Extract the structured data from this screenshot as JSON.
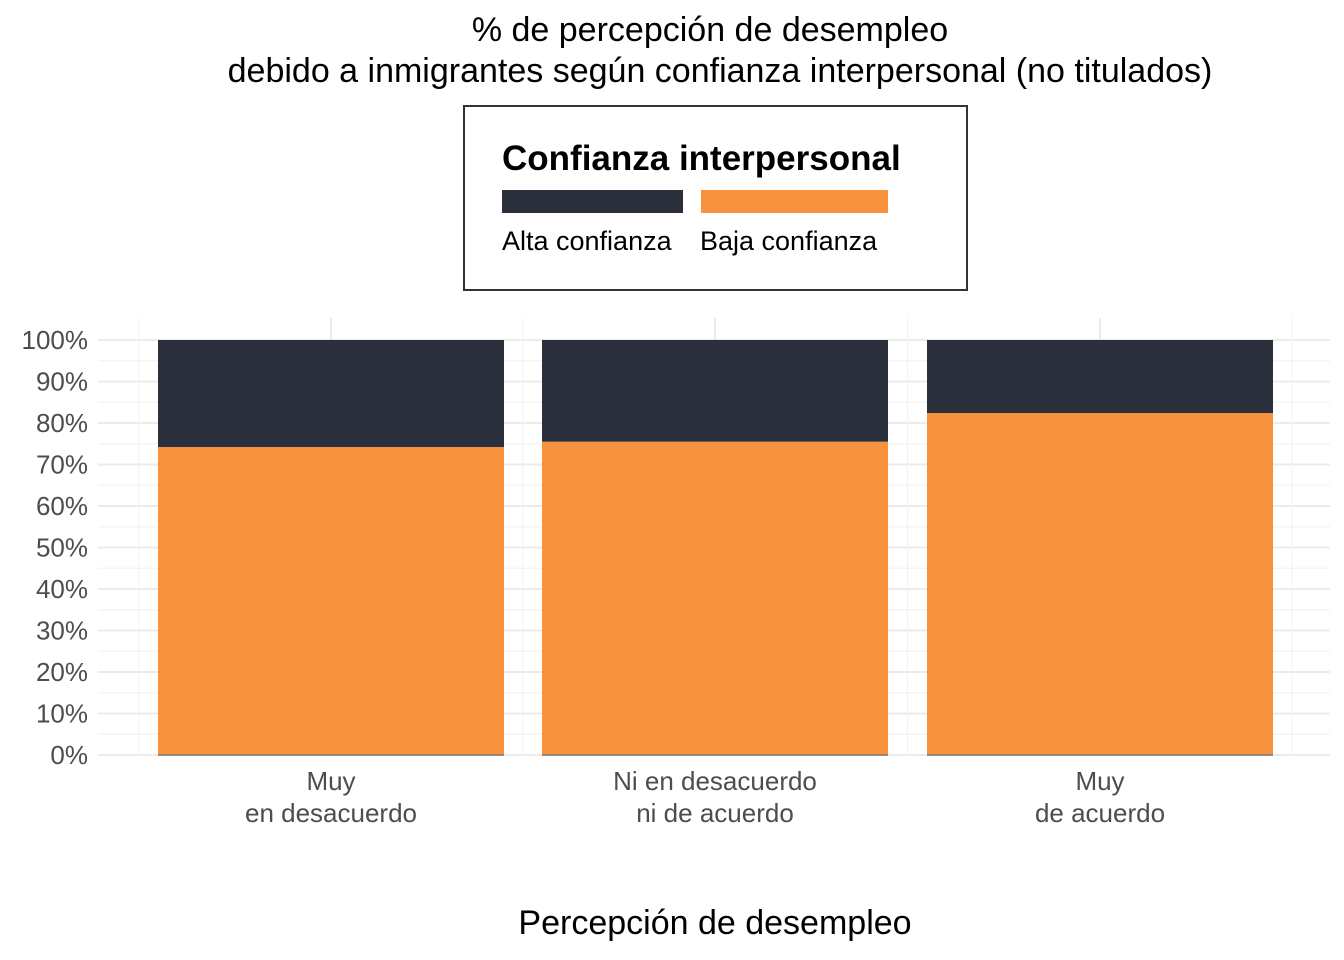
{
  "chart_data": {
    "type": "bar",
    "stacked": true,
    "title": [
      "% de percepción de desempleo",
      "debido a inmigrantes según confianza interpersonal (no titulados)"
    ],
    "xlabel": "Percepción de desempleo",
    "ylabel": "",
    "categories": [
      [
        "Muy",
        "en desacuerdo"
      ],
      [
        "Ni en desacuerdo",
        "ni de acuerdo"
      ],
      [
        "Muy",
        "de acuerdo"
      ]
    ],
    "series": [
      {
        "name": "Baja confianza",
        "color": "#f8923e",
        "values": [
          74.2,
          75.5,
          82.4
        ]
      },
      {
        "name": "Alta confianza",
        "color": "#2b2f3c",
        "values": [
          25.8,
          24.5,
          17.6
        ]
      }
    ],
    "ylim": [
      0,
      100
    ],
    "yticks": [
      "0%",
      "10%",
      "20%",
      "30%",
      "40%",
      "50%",
      "60%",
      "70%",
      "80%",
      "90%",
      "100%"
    ],
    "grid": true,
    "legend": {
      "title": "Confianza interpersonal",
      "position": "top",
      "entries": [
        {
          "label": "Alta confianza",
          "color": "#2b2f3c"
        },
        {
          "label": "Baja confianza",
          "color": "#f8923e"
        }
      ]
    }
  }
}
